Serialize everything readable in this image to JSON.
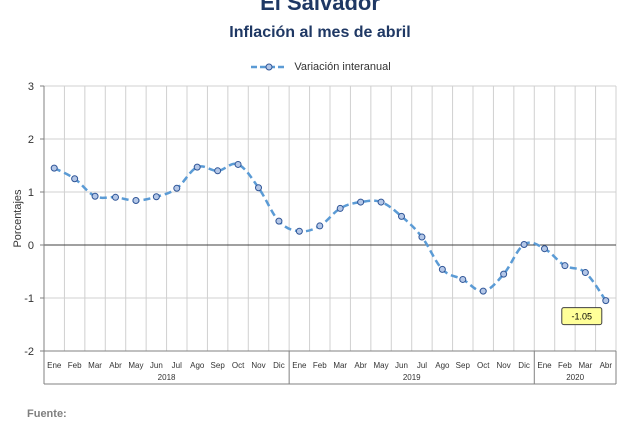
{
  "title": "El Salvador",
  "subtitle": "Inflación al mes de abril",
  "source_label": "Fuente:",
  "legend_label": "Variación interanual",
  "colors": {
    "line": "#5b9bd5",
    "marker_fill": "#b4c7e7",
    "marker_stroke": "#2f5597",
    "grid": "#d0d0d0",
    "zero_line": "#404040",
    "callout_fill": "#ffff99",
    "callout_border": "#404040"
  },
  "chart_data": {
    "type": "line",
    "ylabel": "Porcentajes",
    "ylim": [
      -2,
      3
    ],
    "yticks": [
      "3",
      "2",
      "1",
      "0",
      "-1",
      "-2"
    ],
    "ytick_values": [
      3,
      2,
      1,
      0,
      -1,
      -2
    ],
    "grid": true,
    "legend_position": "top-center",
    "months": [
      "Ene",
      "Feb",
      "Mar",
      "Abr",
      "May",
      "Jun",
      "Jul",
      "Ago",
      "Sep",
      "Oct",
      "Nov",
      "Dic",
      "Ene",
      "Feb",
      "Mar",
      "Abr",
      "May",
      "Jun",
      "Jul",
      "Ago",
      "Sep",
      "Oct",
      "Nov",
      "Dic",
      "Ene",
      "Feb",
      "Mar",
      "Abr"
    ],
    "years": [
      {
        "label": "2018",
        "count": 12
      },
      {
        "label": "2019",
        "count": 12
      },
      {
        "label": "2020",
        "count": 4
      }
    ],
    "series": [
      {
        "name": "Variación interanual",
        "values": [
          1.45,
          1.25,
          0.92,
          0.9,
          0.84,
          0.91,
          1.07,
          1.47,
          1.4,
          1.52,
          1.08,
          0.45,
          0.26,
          0.36,
          0.69,
          0.81,
          0.81,
          0.54,
          0.15,
          -0.46,
          -0.65,
          -0.87,
          -0.55,
          0.01,
          -0.07,
          -0.39,
          -0.52,
          -1.05
        ]
      }
    ],
    "annotation": {
      "index": 27,
      "text": "-1.05"
    }
  }
}
